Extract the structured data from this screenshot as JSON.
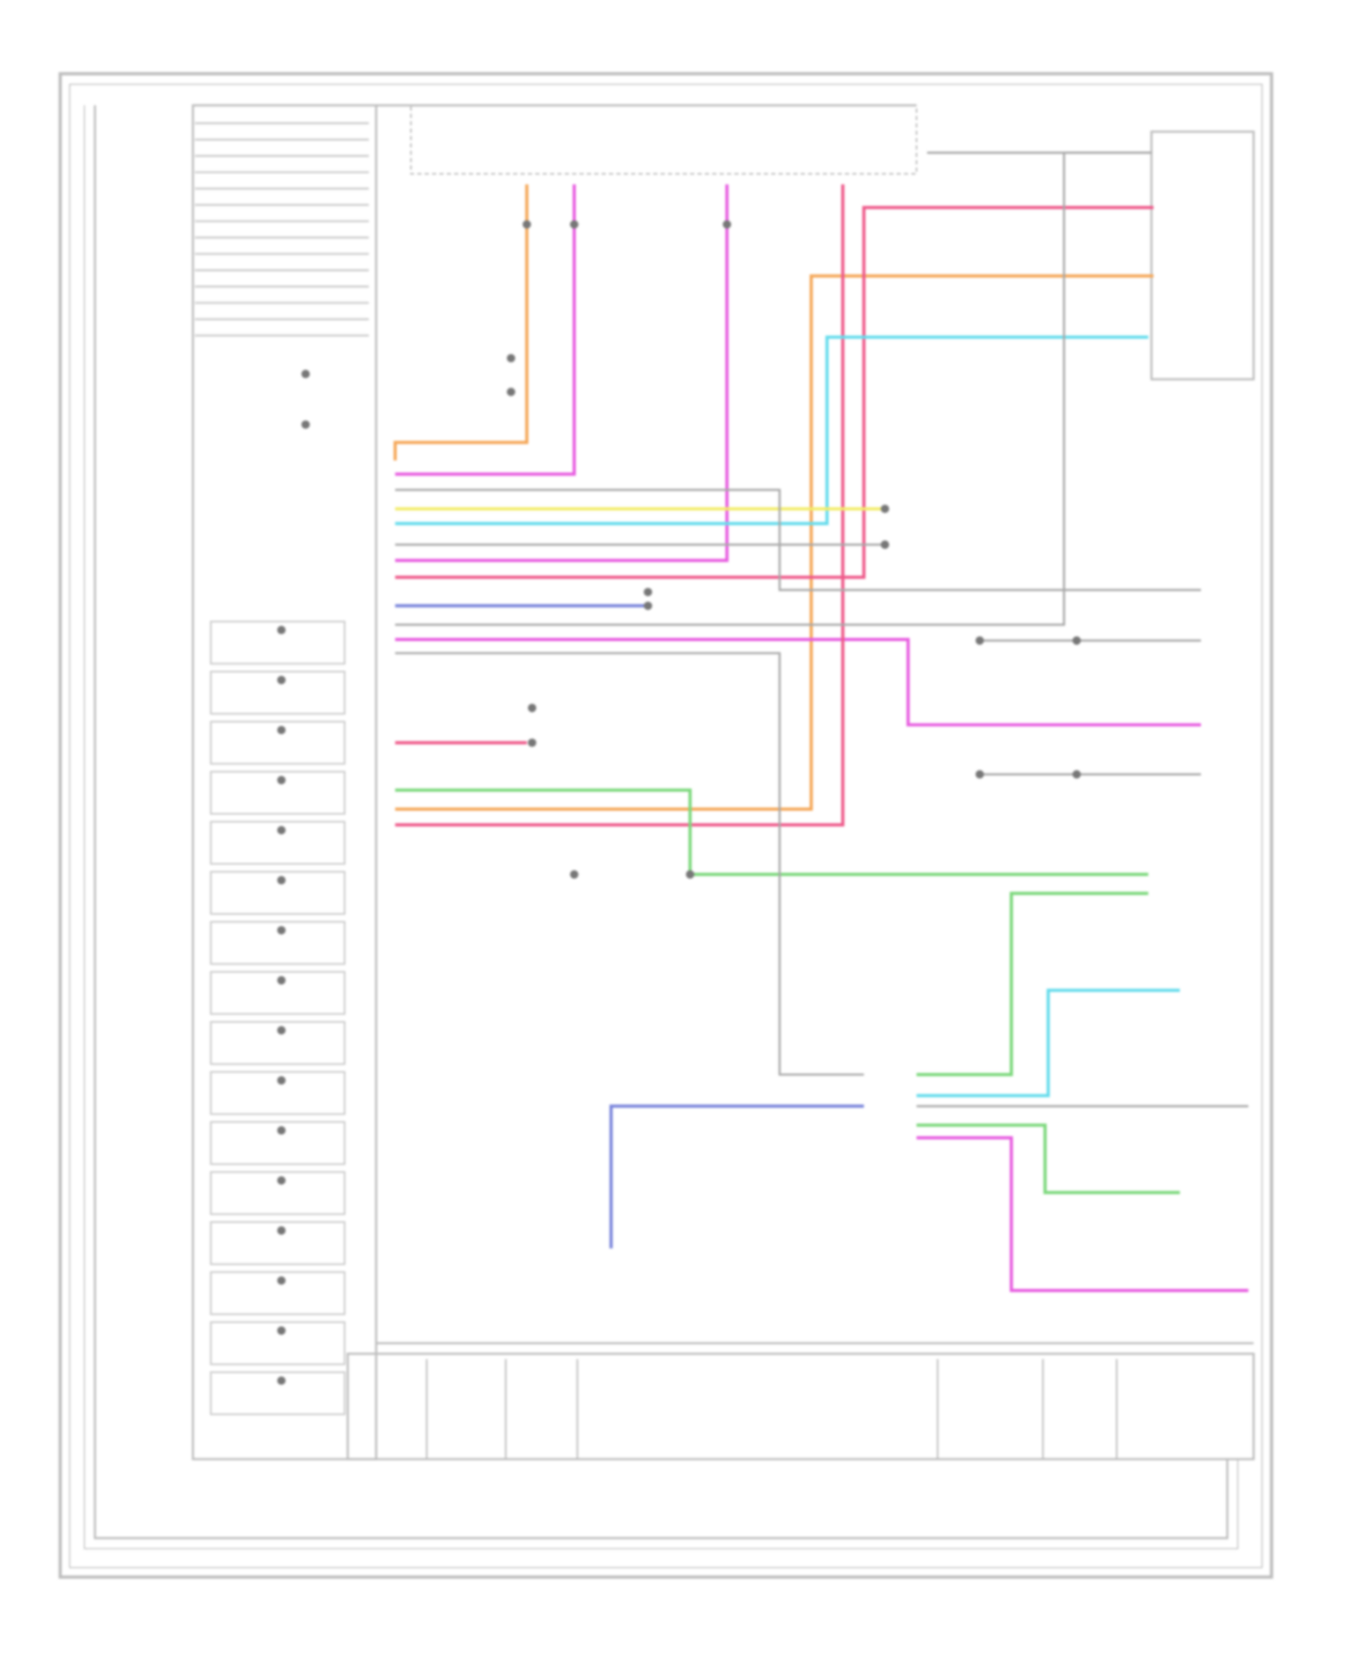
{
  "diagram": {
    "type": "wiring-schematic",
    "background": "#ffffff",
    "frame_color": "#b8b8b8",
    "line_color": "#c4c4c4",
    "wire_colors": {
      "orange": "#f5a85a",
      "pink": "#ee5a8a",
      "magenta": "#e75ce0",
      "cyan": "#66dcec",
      "yellow": "#f2ec6a",
      "green": "#7cd87c",
      "blue": "#7a86dc",
      "gray": "#a8a8a8"
    }
  }
}
